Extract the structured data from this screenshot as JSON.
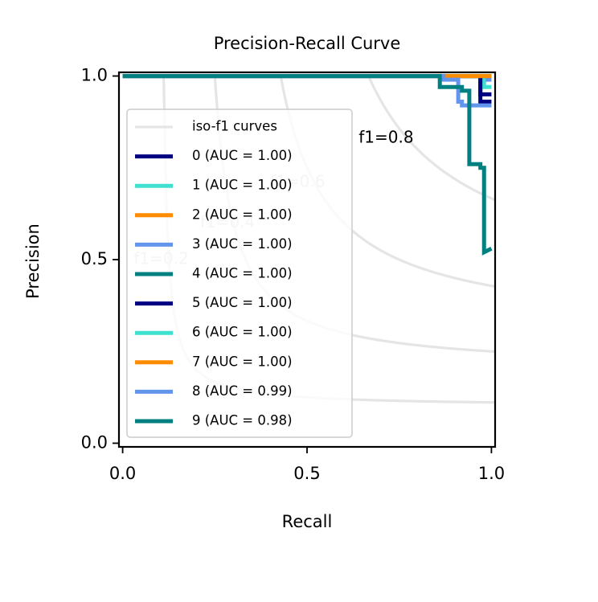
{
  "chart_data": {
    "type": "line",
    "title": "Precision-Recall Curve",
    "xlabel": "Recall",
    "ylabel": "Precision",
    "xlim": [
      -0.01,
      1.01
    ],
    "ylim": [
      -0.01,
      1.01
    ],
    "xticks": [
      0.0,
      0.5,
      1.0
    ],
    "xtick_labels": [
      "0.0",
      "0.5",
      "1.0"
    ],
    "yticks": [
      0.0,
      0.5,
      1.0
    ],
    "ytick_labels": [
      "0.0",
      "0.5",
      "1.0"
    ],
    "grid": false,
    "legend_position": "lower-left",
    "iso_f1": {
      "legend_label": "iso-f1 curves",
      "color": "#e5e5e5",
      "values": [
        0.2,
        0.4,
        0.6,
        0.8
      ],
      "labels": [
        "f1=0.2",
        "f1=0.4",
        "f1=0.6",
        "f1=0.8"
      ]
    },
    "series": [
      {
        "name": "0 (AUC = 1.00)",
        "color": "#000080",
        "x": [
          0,
          0.97,
          0.97,
          0.97,
          1.0
        ],
        "y": [
          1.0,
          1.0,
          0.98,
          0.95,
          0.95
        ]
      },
      {
        "name": "1 (AUC = 1.00)",
        "color": "#40e0d0",
        "x": [
          0,
          0.98,
          0.98,
          1.0
        ],
        "y": [
          1.0,
          1.0,
          0.97,
          0.97
        ]
      },
      {
        "name": "2 (AUC = 1.00)",
        "color": "#ff8c00",
        "x": [
          0,
          1.0
        ],
        "y": [
          1.0,
          1.0
        ]
      },
      {
        "name": "3 (AUC = 1.00)",
        "color": "#6495ed",
        "x": [
          0,
          0.99,
          0.99,
          1.0
        ],
        "y": [
          1.0,
          1.0,
          0.99,
          0.99
        ]
      },
      {
        "name": "4 (AUC = 1.00)",
        "color": "#008080",
        "x": [
          0,
          1.0
        ],
        "y": [
          1.0,
          1.0
        ]
      },
      {
        "name": "5 (AUC = 1.00)",
        "color": "#000080",
        "x": [
          0,
          0.97,
          0.97,
          1.0
        ],
        "y": [
          1.0,
          1.0,
          0.93,
          0.93
        ]
      },
      {
        "name": "6 (AUC = 1.00)",
        "color": "#40e0d0",
        "x": [
          0,
          1.0
        ],
        "y": [
          1.0,
          1.0
        ]
      },
      {
        "name": "7 (AUC = 1.00)",
        "color": "#ff8c00",
        "x": [
          0,
          1.0
        ],
        "y": [
          1.0,
          1.0
        ]
      },
      {
        "name": "8 (AUC = 0.99)",
        "color": "#6495ed",
        "x": [
          0,
          0.87,
          0.87,
          0.91,
          0.91,
          0.92,
          0.92,
          1.0
        ],
        "y": [
          1.0,
          1.0,
          0.99,
          0.99,
          0.93,
          0.93,
          0.92,
          0.92
        ]
      },
      {
        "name": "9 (AUC = 0.98)",
        "color": "#008080",
        "x": [
          0,
          0.86,
          0.86,
          0.92,
          0.92,
          0.94,
          0.94,
          0.97,
          0.97,
          0.98,
          0.98,
          1.0
        ],
        "y": [
          1.0,
          1.0,
          0.97,
          0.97,
          0.96,
          0.96,
          0.76,
          0.76,
          0.75,
          0.75,
          0.52,
          0.53
        ]
      }
    ]
  }
}
